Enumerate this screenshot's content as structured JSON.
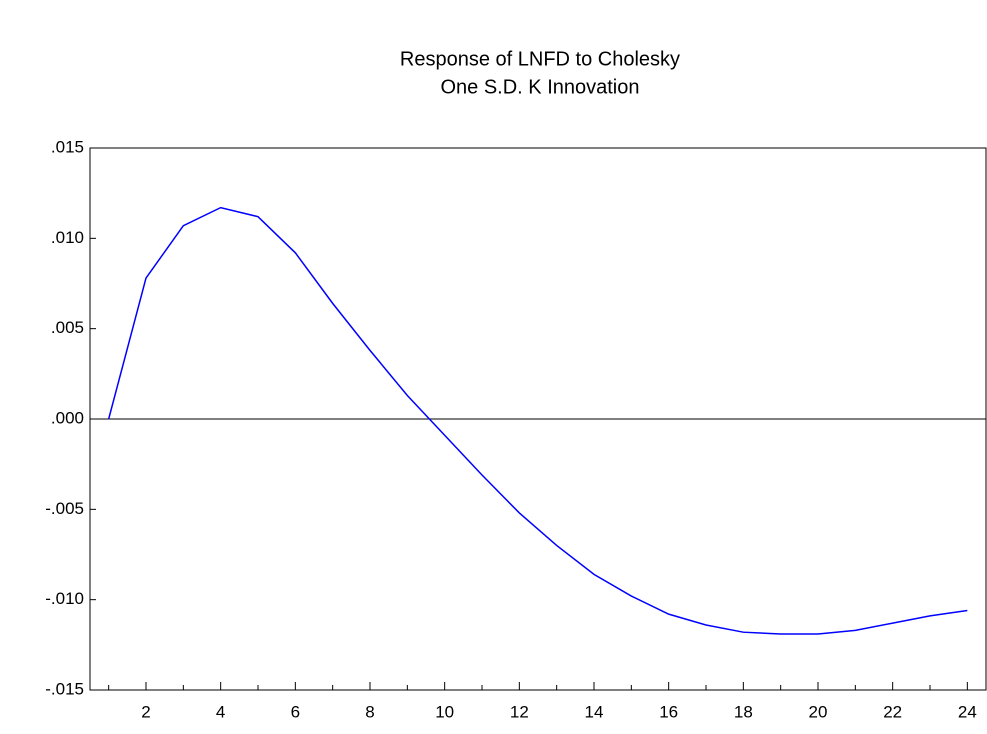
{
  "chart_data": {
    "type": "line",
    "title": "Response of LNFD to Cholesky",
    "subtitle": "One S.D. K Innovation",
    "categories": [
      null,
      "2",
      null,
      "4",
      null,
      "6",
      null,
      "8",
      null,
      "10",
      null,
      "12",
      null,
      "14",
      null,
      "16",
      null,
      "18",
      null,
      "20",
      null,
      "22",
      null,
      "24"
    ],
    "series": [
      {
        "color": "#0000ff",
        "values": [
          0.0,
          0.0078,
          0.0107,
          0.0117,
          0.0112,
          0.0092,
          0.0064,
          0.0038,
          0.0013,
          -0.0009,
          -0.0031,
          -0.0052,
          -0.007,
          -0.0086,
          -0.0098,
          -0.0108,
          -0.0114,
          -0.0118,
          -0.0119,
          -0.0119,
          -0.0117,
          -0.0113,
          -0.0109,
          -0.0106
        ]
      }
    ],
    "ylim": [
      -0.015,
      0.015
    ],
    "yticks": [
      {
        "value": -0.015,
        "label": "-.015"
      },
      {
        "value": -0.01,
        "label": "-.010"
      },
      {
        "value": -0.005,
        "label": "-.005"
      },
      {
        "value": 0,
        "label": ".000"
      },
      {
        "value": 0.005,
        "label": ".005"
      },
      {
        "value": 0.01,
        "label": ".010"
      },
      {
        "value": 0.015,
        "label": ".015"
      }
    ],
    "zero_line": true
  }
}
